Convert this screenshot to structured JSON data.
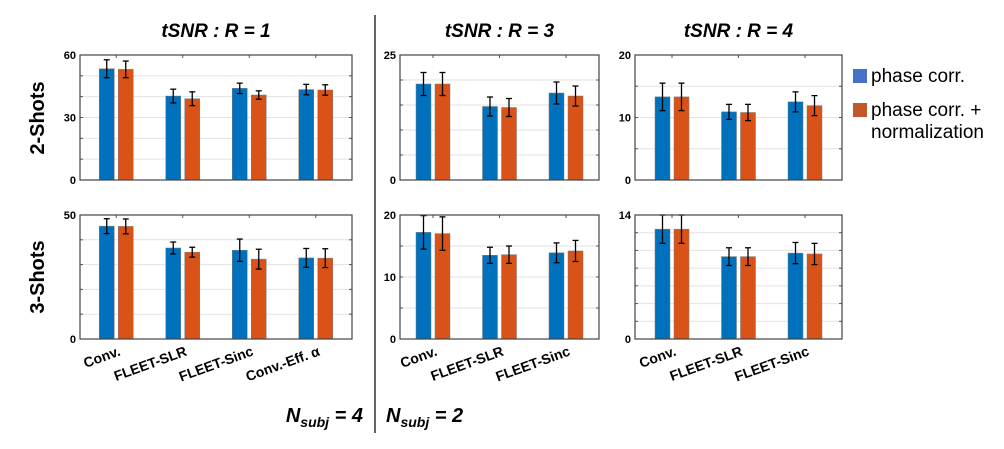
{
  "legend": {
    "series_1": "phase corr.",
    "series_2_line1": "phase corr. +",
    "series_2_line2": "normalization"
  },
  "colors": {
    "series_1": "#0072BD",
    "series_2": "#D95319",
    "legend_1": "#4472C4",
    "legend_2": "#C0582A"
  },
  "rows": [
    "2-Shots",
    "3-Shots"
  ],
  "nsubj": [
    {
      "symbol": "N",
      "sub": "subj",
      "value": " = 4"
    },
    {
      "symbol": "N",
      "sub": "subj",
      "value": " = 2"
    }
  ],
  "chart_data": [
    {
      "type": "bar",
      "title": "tSNR : R = 1",
      "row": "2-Shots",
      "categories": [
        "Conv.",
        "FLEET-SLR",
        "FLEET-Sinc",
        "Conv.-Eff. α"
      ],
      "ylim": [
        0,
        60
      ],
      "yticks": [
        0,
        30,
        60
      ],
      "grid_step": 10,
      "series": [
        {
          "name": "phase corr.",
          "values": [
            53.4,
            40.3,
            44.0,
            43.4
          ],
          "errors": [
            4.3,
            3.3,
            2.5,
            2.5
          ]
        },
        {
          "name": "phase corr. + normalization",
          "values": [
            53.1,
            39.0,
            40.8,
            43.2
          ],
          "errors": [
            4.0,
            3.3,
            2.0,
            2.5
          ]
        }
      ]
    },
    {
      "type": "bar",
      "title": "tSNR : R = 3",
      "row": "2-Shots",
      "categories": [
        "Conv.",
        "FLEET-SLR",
        "FLEET-Sinc"
      ],
      "ylim": [
        0,
        25
      ],
      "yticks": [
        0,
        25
      ],
      "grid_step": 5,
      "series": [
        {
          "name": "phase corr.",
          "values": [
            19.2,
            14.7,
            17.4
          ],
          "errors": [
            2.3,
            1.9,
            2.2
          ]
        },
        {
          "name": "phase corr. + normalization",
          "values": [
            19.2,
            14.5,
            16.8
          ],
          "errors": [
            2.3,
            1.8,
            2.0
          ]
        }
      ]
    },
    {
      "type": "bar",
      "title": "tSNR : R = 4",
      "row": "2-Shots",
      "categories": [
        "Conv.",
        "FLEET-SLR",
        "FLEET-Sinc"
      ],
      "ylim": [
        0,
        20
      ],
      "yticks": [
        0,
        10,
        20
      ],
      "grid_step": 5,
      "series": [
        {
          "name": "phase corr.",
          "values": [
            13.3,
            10.9,
            12.5
          ],
          "errors": [
            2.2,
            1.2,
            1.6
          ]
        },
        {
          "name": "phase corr. + normalization",
          "values": [
            13.3,
            10.8,
            11.9
          ],
          "errors": [
            2.2,
            1.3,
            1.6
          ]
        }
      ]
    },
    {
      "type": "bar",
      "title": "",
      "row": "3-Shots",
      "categories": [
        "Conv.",
        "FLEET-SLR",
        "FLEET-Sinc",
        "Conv.-Eff. α"
      ],
      "ylim": [
        0,
        50
      ],
      "yticks": [
        0,
        50
      ],
      "grid_step": 10,
      "series": [
        {
          "name": "phase corr.",
          "values": [
            45.5,
            36.7,
            35.8,
            32.7
          ],
          "errors": [
            3.0,
            2.4,
            4.5,
            3.8
          ]
        },
        {
          "name": "phase corr. + normalization",
          "values": [
            45.4,
            35.0,
            32.2,
            32.6
          ],
          "errors": [
            3.0,
            2.0,
            4.0,
            3.8
          ]
        }
      ]
    },
    {
      "type": "bar",
      "title": "",
      "row": "3-Shots",
      "categories": [
        "Conv.",
        "FLEET-SLR",
        "FLEET-Sinc"
      ],
      "ylim": [
        0,
        20
      ],
      "yticks": [
        0,
        10,
        20
      ],
      "grid_step": 5,
      "series": [
        {
          "name": "phase corr.",
          "values": [
            17.2,
            13.5,
            13.9
          ],
          "errors": [
            2.7,
            1.3,
            1.6
          ]
        },
        {
          "name": "phase corr. + normalization",
          "values": [
            17.0,
            13.6,
            14.2
          ],
          "errors": [
            2.7,
            1.4,
            1.7
          ]
        }
      ]
    },
    {
      "type": "bar",
      "title": "",
      "row": "3-Shots",
      "categories": [
        "Conv.",
        "FLEET-SLR",
        "FLEET-Sinc"
      ],
      "ylim": [
        0,
        14
      ],
      "yticks": [
        0,
        14
      ],
      "grid_step": 2,
      "series": [
        {
          "name": "phase corr.",
          "values": [
            12.4,
            9.3,
            9.7
          ],
          "errors": [
            1.6,
            1.0,
            1.2
          ]
        },
        {
          "name": "phase corr. + normalization",
          "values": [
            12.4,
            9.3,
            9.6
          ],
          "errors": [
            1.6,
            1.0,
            1.2
          ]
        }
      ]
    }
  ]
}
